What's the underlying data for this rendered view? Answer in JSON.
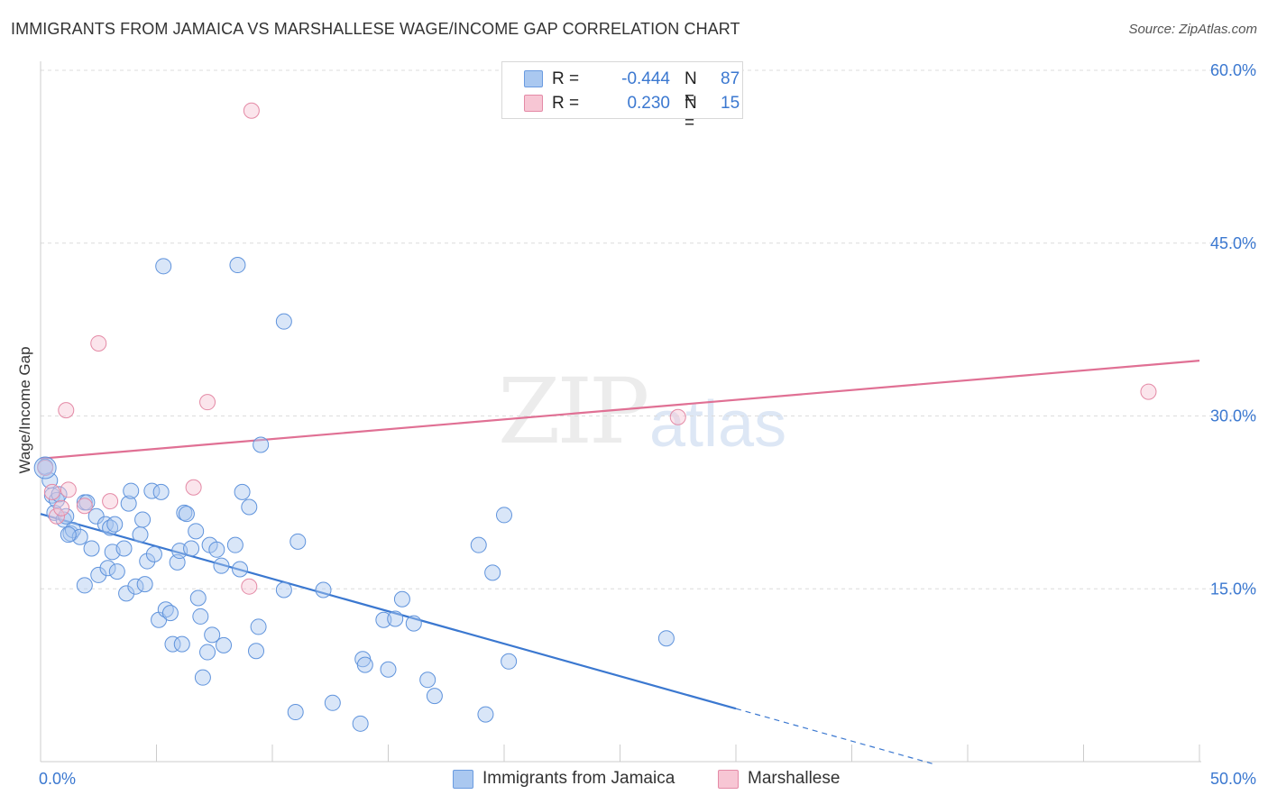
{
  "title": "IMMIGRANTS FROM JAMAICA VS MARSHALLESE WAGE/INCOME GAP CORRELATION CHART",
  "source": "Source: ZipAtlas.com",
  "watermark": {
    "zip": "ZIP",
    "atlas": "atlas"
  },
  "legend": {
    "rows": [
      {
        "r_label": "R =",
        "r_value": "-0.444",
        "n_label": "N =",
        "n_value": "87",
        "color": "#aac8f0",
        "border": "#6a9be0"
      },
      {
        "r_label": "R =",
        "r_value": "0.230",
        "n_label": "N =",
        "n_value": "15",
        "color": "#f7c6d4",
        "border": "#e48aa6"
      }
    ]
  },
  "bottom_legend": {
    "series1": "Immigrants from Jamaica",
    "series2": "Marshallese"
  },
  "chart_data": {
    "type": "scatter",
    "title": "IMMIGRANTS FROM JAMAICA VS MARSHALLESE WAGE/INCOME GAP CORRELATION CHART",
    "xlabel": "",
    "ylabel": "Wage/Income Gap",
    "xlim": [
      0,
      50
    ],
    "ylim": [
      0,
      60
    ],
    "x_tick_labels": [
      "0.0%",
      "50.0%"
    ],
    "y_tick_labels": [
      "15.0%",
      "30.0%",
      "45.0%",
      "60.0%"
    ],
    "y_ticks": [
      15,
      30,
      45,
      60
    ],
    "grid": "horizontal dashed",
    "legend_position": "top-center",
    "colors": {
      "series1": "#3b78d0",
      "series2": "#e07094"
    },
    "series": [
      {
        "name": "Immigrants from Jamaica",
        "trend": {
          "x0": 0,
          "y0": 21.5,
          "x1": 30,
          "y1": 4.6,
          "dashed_to_x": 38.5
        },
        "points": [
          [
            0.2,
            25.6
          ],
          [
            0.4,
            24.4
          ],
          [
            0.5,
            23.1
          ],
          [
            0.6,
            21.6
          ],
          [
            0.7,
            22.7
          ],
          [
            0.8,
            23.2
          ],
          [
            1.0,
            21.0
          ],
          [
            1.1,
            21.3
          ],
          [
            1.3,
            19.8
          ],
          [
            1.4,
            20.1
          ],
          [
            1.7,
            19.5
          ],
          [
            1.9,
            22.5
          ],
          [
            1.9,
            15.3
          ],
          [
            2.2,
            18.5
          ],
          [
            2.4,
            21.3
          ],
          [
            2.5,
            16.2
          ],
          [
            2.8,
            20.6
          ],
          [
            2.9,
            16.8
          ],
          [
            3.0,
            20.3
          ],
          [
            3.1,
            18.2
          ],
          [
            3.2,
            20.6
          ],
          [
            3.3,
            16.5
          ],
          [
            3.6,
            18.5
          ],
          [
            3.7,
            14.6
          ],
          [
            3.8,
            22.4
          ],
          [
            3.9,
            23.5
          ],
          [
            4.1,
            15.2
          ],
          [
            4.3,
            19.7
          ],
          [
            4.4,
            21.0
          ],
          [
            4.5,
            15.4
          ],
          [
            4.6,
            17.4
          ],
          [
            4.8,
            23.5
          ],
          [
            4.9,
            18.0
          ],
          [
            5.1,
            12.3
          ],
          [
            5.2,
            23.4
          ],
          [
            5.3,
            43.0
          ],
          [
            5.4,
            13.2
          ],
          [
            5.6,
            12.9
          ],
          [
            5.7,
            10.2
          ],
          [
            5.9,
            17.3
          ],
          [
            6.0,
            18.3
          ],
          [
            6.1,
            10.2
          ],
          [
            6.2,
            21.6
          ],
          [
            6.3,
            21.5
          ],
          [
            6.5,
            18.5
          ],
          [
            6.7,
            20.0
          ],
          [
            6.9,
            12.6
          ],
          [
            7.0,
            7.3
          ],
          [
            7.2,
            9.5
          ],
          [
            7.3,
            18.8
          ],
          [
            7.4,
            11.0
          ],
          [
            7.6,
            18.4
          ],
          [
            7.8,
            17.0
          ],
          [
            7.9,
            10.1
          ],
          [
            8.4,
            18.8
          ],
          [
            8.5,
            43.1
          ],
          [
            8.6,
            16.7
          ],
          [
            8.7,
            23.4
          ],
          [
            9.0,
            22.1
          ],
          [
            9.3,
            9.6
          ],
          [
            9.4,
            11.7
          ],
          [
            9.5,
            27.5
          ],
          [
            10.5,
            38.2
          ],
          [
            10.5,
            14.9
          ],
          [
            11.0,
            4.3
          ],
          [
            11.1,
            19.1
          ],
          [
            12.2,
            14.9
          ],
          [
            12.6,
            5.1
          ],
          [
            13.8,
            3.3
          ],
          [
            13.9,
            8.9
          ],
          [
            14.0,
            8.4
          ],
          [
            14.8,
            12.3
          ],
          [
            15.0,
            8.0
          ],
          [
            15.3,
            12.4
          ],
          [
            15.6,
            14.1
          ],
          [
            16.1,
            12.0
          ],
          [
            16.7,
            7.1
          ],
          [
            17.0,
            5.7
          ],
          [
            18.9,
            18.8
          ],
          [
            19.2,
            4.1
          ],
          [
            19.5,
            16.4
          ],
          [
            20.0,
            21.4
          ],
          [
            20.2,
            8.7
          ],
          [
            27.0,
            10.7
          ],
          [
            1.2,
            19.7
          ],
          [
            2.0,
            22.5
          ],
          [
            6.8,
            14.2
          ]
        ]
      },
      {
        "name": "Marshallese",
        "trend": {
          "x0": 0,
          "y0": 26.3,
          "x1": 50,
          "y1": 34.8
        },
        "points": [
          [
            0.2,
            25.5
          ],
          [
            0.5,
            23.4
          ],
          [
            0.7,
            21.3
          ],
          [
            1.1,
            30.5
          ],
          [
            1.2,
            23.6
          ],
          [
            1.9,
            22.2
          ],
          [
            2.5,
            36.3
          ],
          [
            3.0,
            22.6
          ],
          [
            7.2,
            31.2
          ],
          [
            6.6,
            23.8
          ],
          [
            9.1,
            56.5
          ],
          [
            9.0,
            15.2
          ],
          [
            27.5,
            29.9
          ],
          [
            47.8,
            32.1
          ],
          [
            0.9,
            22.0
          ]
        ]
      }
    ]
  }
}
